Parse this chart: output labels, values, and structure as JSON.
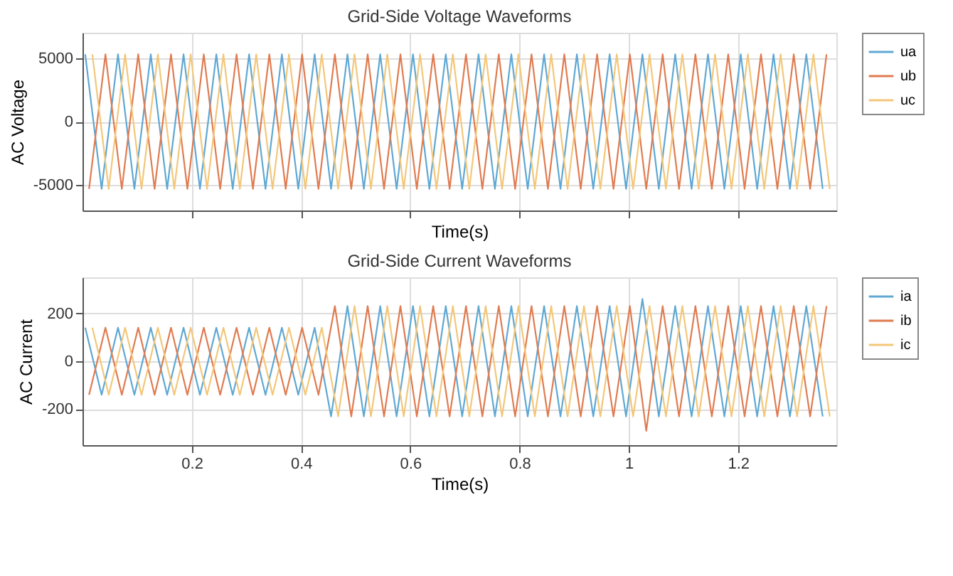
{
  "chart_data": [
    {
      "type": "line",
      "title": "Grid-Side Voltage Waveforms",
      "xlabel": "Time(s)",
      "ylabel": "AC Voltage",
      "xlim": [
        0,
        1.38
      ],
      "xticks": [
        0.2,
        0.4,
        0.6,
        0.8,
        1,
        1.2
      ],
      "ylim": [
        -7000,
        7000
      ],
      "yticks": [
        -5000,
        0,
        5000
      ],
      "grid": true,
      "legend": "right",
      "tick_labels": "y",
      "series": [
        {
          "name": "ua",
          "color": "#5fa8d3",
          "x": [
            0.005,
            0.035,
            0.065,
            0.095,
            0.125,
            0.155,
            0.185,
            0.215,
            0.245,
            0.275,
            0.305,
            0.335,
            0.365,
            0.395,
            0.425,
            0.455,
            0.485,
            0.515,
            0.545,
            0.575,
            0.605,
            0.635,
            0.665,
            0.695,
            0.725,
            0.755,
            0.785,
            0.815,
            0.845,
            0.875,
            0.905,
            0.935,
            0.965,
            0.995,
            1.025,
            1.055,
            1.085,
            1.115,
            1.145,
            1.175,
            1.205,
            1.235,
            1.265,
            1.295,
            1.325,
            1.355
          ],
          "values": [
            5300,
            -5300,
            5300,
            -5300,
            5300,
            -5300,
            5300,
            -5300,
            5300,
            -5300,
            5300,
            -5300,
            5300,
            -5300,
            5300,
            -5300,
            5300,
            -5300,
            5300,
            -5300,
            5300,
            -5300,
            5300,
            -5300,
            5300,
            -5300,
            5300,
            -5300,
            5300,
            -5300,
            5300,
            -5300,
            5300,
            -5300,
            5300,
            -5300,
            5300,
            -5300,
            5300,
            -5300,
            5300,
            -5300,
            5300,
            -5300,
            5300,
            -5300
          ]
        },
        {
          "name": "ub",
          "color": "#e07b50",
          "x": [
            0.012,
            0.042,
            0.072,
            0.102,
            0.132,
            0.162,
            0.192,
            0.222,
            0.252,
            0.282,
            0.312,
            0.342,
            0.372,
            0.402,
            0.432,
            0.462,
            0.492,
            0.522,
            0.552,
            0.582,
            0.612,
            0.642,
            0.672,
            0.702,
            0.732,
            0.762,
            0.792,
            0.822,
            0.852,
            0.882,
            0.912,
            0.942,
            0.972,
            1.002,
            1.032,
            1.062,
            1.092,
            1.122,
            1.152,
            1.182,
            1.212,
            1.242,
            1.272,
            1.302,
            1.332,
            1.362
          ],
          "values": [
            -5300,
            5300,
            -5300,
            5300,
            -5300,
            5300,
            -5300,
            5300,
            -5300,
            5300,
            -5300,
            5300,
            -5300,
            5300,
            -5300,
            5300,
            -5300,
            5300,
            -5300,
            5300,
            -5300,
            5300,
            -5300,
            5300,
            -5300,
            5300,
            -5300,
            5300,
            -5300,
            5300,
            -5300,
            5300,
            -5300,
            5300,
            -5300,
            5300,
            -5300,
            5300,
            -5300,
            5300,
            -5300,
            5300,
            -5300,
            5300,
            -5300,
            5300
          ]
        },
        {
          "name": "uc",
          "color": "#f3c77a",
          "x": [
            0.018,
            0.048,
            0.078,
            0.108,
            0.138,
            0.168,
            0.198,
            0.228,
            0.258,
            0.288,
            0.318,
            0.348,
            0.378,
            0.408,
            0.438,
            0.468,
            0.498,
            0.528,
            0.558,
            0.588,
            0.618,
            0.648,
            0.678,
            0.708,
            0.738,
            0.768,
            0.798,
            0.828,
            0.858,
            0.888,
            0.918,
            0.948,
            0.978,
            1.008,
            1.038,
            1.068,
            1.098,
            1.128,
            1.158,
            1.188,
            1.218,
            1.248,
            1.278,
            1.308,
            1.338,
            1.368
          ],
          "values": [
            5300,
            -5300,
            5300,
            -5300,
            5300,
            -5300,
            5300,
            -5300,
            5300,
            -5300,
            5300,
            -5300,
            5300,
            -5300,
            5300,
            -5300,
            5300,
            -5300,
            5300,
            -5300,
            5300,
            -5300,
            5300,
            -5300,
            5300,
            -5300,
            5300,
            -5300,
            5300,
            -5300,
            5300,
            -5300,
            5300,
            -5300,
            5300,
            -5300,
            5300,
            -5300,
            5300,
            -5300,
            5300,
            -5300,
            5300,
            -5300,
            5300,
            -5300
          ]
        }
      ]
    },
    {
      "type": "line",
      "title": "Grid-Side  Current Waveforms",
      "xlabel": "Time(s)",
      "ylabel": "AC Current",
      "xlim": [
        0,
        1.38
      ],
      "xticks": [
        0.2,
        0.4,
        0.6,
        0.8,
        1,
        1.2
      ],
      "ylim": [
        -350,
        350
      ],
      "yticks": [
        -200,
        0,
        200
      ],
      "grid": true,
      "legend": "right",
      "series": [
        {
          "name": "ia",
          "color": "#5fa8d3",
          "x": [
            0.005,
            0.035,
            0.065,
            0.095,
            0.125,
            0.155,
            0.185,
            0.215,
            0.245,
            0.275,
            0.305,
            0.335,
            0.365,
            0.395,
            0.425,
            0.455,
            0.485,
            0.515,
            0.545,
            0.575,
            0.605,
            0.635,
            0.665,
            0.695,
            0.725,
            0.755,
            0.785,
            0.815,
            0.845,
            0.875,
            0.905,
            0.935,
            0.965,
            0.995,
            1.025,
            1.055,
            1.085,
            1.115,
            1.145,
            1.175,
            1.205,
            1.235,
            1.265,
            1.295,
            1.325,
            1.355
          ],
          "values": [
            140,
            -140,
            140,
            -140,
            140,
            -140,
            140,
            -140,
            140,
            -140,
            140,
            -140,
            140,
            -140,
            140,
            -230,
            230,
            -230,
            230,
            -230,
            230,
            -230,
            230,
            -230,
            230,
            -230,
            230,
            -230,
            230,
            -230,
            230,
            -230,
            230,
            -230,
            260,
            -230,
            230,
            -230,
            230,
            -230,
            230,
            -230,
            230,
            -230,
            230,
            -230
          ]
        },
        {
          "name": "ib",
          "color": "#e07b50",
          "x": [
            0.012,
            0.042,
            0.072,
            0.102,
            0.132,
            0.162,
            0.192,
            0.222,
            0.252,
            0.282,
            0.312,
            0.342,
            0.372,
            0.402,
            0.432,
            0.462,
            0.492,
            0.522,
            0.552,
            0.582,
            0.612,
            0.642,
            0.672,
            0.702,
            0.732,
            0.762,
            0.792,
            0.822,
            0.852,
            0.882,
            0.912,
            0.942,
            0.972,
            1.002,
            1.032,
            1.062,
            1.092,
            1.122,
            1.152,
            1.182,
            1.212,
            1.242,
            1.272,
            1.302,
            1.332,
            1.362
          ],
          "values": [
            -140,
            140,
            -140,
            140,
            -140,
            140,
            -140,
            140,
            -140,
            140,
            -140,
            140,
            -140,
            140,
            -140,
            230,
            -230,
            230,
            -230,
            230,
            -230,
            230,
            -230,
            230,
            -230,
            230,
            -230,
            230,
            -230,
            230,
            -230,
            230,
            -230,
            230,
            -290,
            230,
            -230,
            230,
            -230,
            230,
            -230,
            230,
            -230,
            230,
            -230,
            230
          ]
        },
        {
          "name": "ic",
          "color": "#f3c77a",
          "x": [
            0.018,
            0.048,
            0.078,
            0.108,
            0.138,
            0.168,
            0.198,
            0.228,
            0.258,
            0.288,
            0.318,
            0.348,
            0.378,
            0.408,
            0.438,
            0.468,
            0.498,
            0.528,
            0.558,
            0.588,
            0.618,
            0.648,
            0.678,
            0.708,
            0.738,
            0.768,
            0.798,
            0.828,
            0.858,
            0.888,
            0.918,
            0.948,
            0.978,
            1.008,
            1.038,
            1.068,
            1.098,
            1.128,
            1.158,
            1.188,
            1.218,
            1.248,
            1.278,
            1.308,
            1.338,
            1.368
          ],
          "values": [
            140,
            -140,
            140,
            -140,
            140,
            -140,
            140,
            -140,
            140,
            -140,
            140,
            -140,
            140,
            -140,
            140,
            -230,
            230,
            -230,
            230,
            -230,
            230,
            -230,
            230,
            -230,
            230,
            -230,
            230,
            -230,
            230,
            -230,
            230,
            -230,
            230,
            -230,
            230,
            -230,
            230,
            -230,
            230,
            -230,
            230,
            -230,
            230,
            -230,
            230,
            -230
          ]
        }
      ]
    }
  ]
}
